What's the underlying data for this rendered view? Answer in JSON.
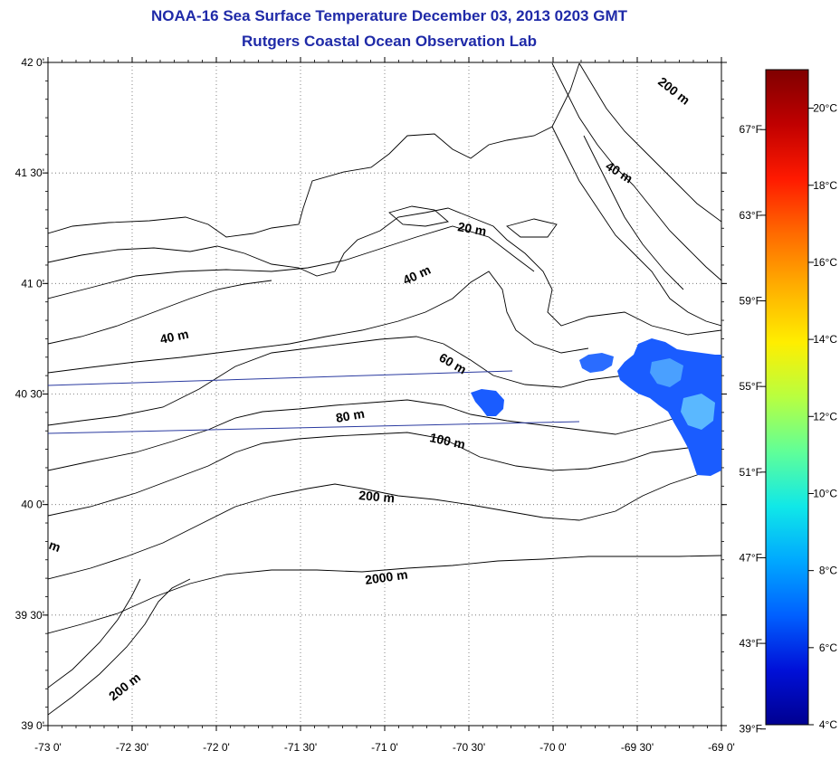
{
  "title": "NOAA-16 Sea Surface Temperature December 03, 2013 0203 GMT",
  "subtitle": "Rutgers Coastal Ocean Observation Lab",
  "map": {
    "lon_range": [
      -73,
      -69
    ],
    "lat_range": [
      39,
      42
    ],
    "lon_ticks": [
      "-73 0'",
      "-72 30'",
      "-72 0'",
      "-71 30'",
      "-71 0'",
      "-70 30'",
      "-70 0'",
      "-69 30'",
      "-69 0'"
    ],
    "lat_ticks": [
      "39 0'",
      "39 30'",
      "40 0'",
      "40 30'",
      "41 0'",
      "41 30'",
      "42 0'"
    ],
    "grid": true,
    "contour_labels": [
      "200 m",
      "40 m",
      "20 m",
      "40 m",
      "40 m",
      "60 m",
      "80 m",
      "100 m",
      "200 m",
      "2000 m",
      "200 m",
      "m"
    ]
  },
  "colorbar": {
    "celsius_labels": [
      "20°C",
      "18°C",
      "16°C",
      "14°C",
      "12°C",
      "10°C",
      "8°C",
      "6°C",
      "4°C"
    ],
    "fahrenheit_labels": [
      "67°F",
      "63°F",
      "59°F",
      "55°F",
      "51°F",
      "47°F",
      "43°F",
      "39°F"
    ],
    "colors": [
      "#7f0000",
      "#c00000",
      "#ff1a00",
      "#ff6a00",
      "#ffb000",
      "#ffee00",
      "#b8ff40",
      "#60ff98",
      "#10e8e8",
      "#00a8ff",
      "#0060ff",
      "#0010d8",
      "#000090"
    ]
  },
  "colors": {
    "title": "#1f2aa8",
    "track_lines": "#2a3aa0",
    "sst_patch": "#1a5cff"
  }
}
